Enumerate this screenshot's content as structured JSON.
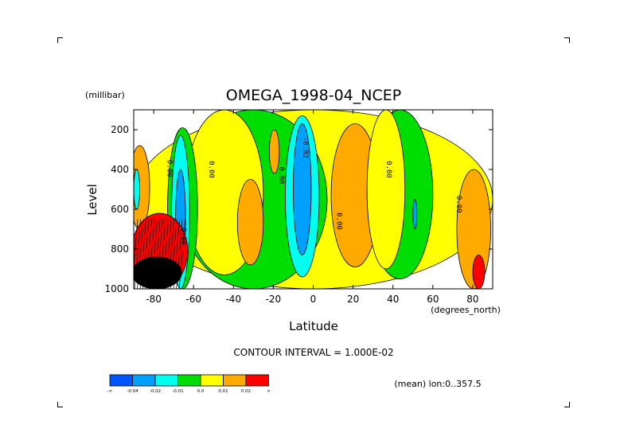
{
  "chart_data": {
    "type": "heatmap",
    "title": "OMEGA_1998-04_NCEP",
    "xlabel": "Latitude",
    "x_unit": "(degrees_north)",
    "ylabel": "Level",
    "y_unit": "(millibar)",
    "xlim": [
      -90,
      90
    ],
    "ylim": [
      1000,
      100
    ],
    "x_ticks": [
      -80,
      -60,
      -40,
      -20,
      0,
      20,
      40,
      60,
      80
    ],
    "y_ticks": [
      200,
      400,
      600,
      800,
      1000
    ],
    "contour_interval_text": "CONTOUR INTERVAL = 1.000E-02",
    "mean_text": "(mean) lon:0..357.5",
    "contour_labels": [
      {
        "text": "0.00",
        "lat": -73,
        "lev": 395
      },
      {
        "text": "0.00",
        "lat": -52,
        "lev": 400
      },
      {
        "text": "0.00",
        "lat": -17,
        "lev": 430
      },
      {
        "text": "-0.02",
        "lat": -5,
        "lev": 290
      },
      {
        "text": "0.00",
        "lat": 12,
        "lev": 660
      },
      {
        "text": "0.00",
        "lat": 37,
        "lev": 400
      },
      {
        "text": "0.00",
        "lat": 72,
        "lev": 575
      },
      {
        "text": "0.00",
        "lat": -66,
        "lev": 735
      }
    ],
    "colorbar": {
      "colors": [
        "#0055ff",
        "#00a0ff",
        "#00ffee",
        "#00dd00",
        "#ffff00",
        "#ffaa00",
        "#ff0000"
      ],
      "labels": [
        "-∞",
        "-0.04",
        "-0.02",
        "-0.01",
        "0.0",
        "0.01",
        "0.02",
        "∞"
      ]
    },
    "regions": [
      {
        "level": "positive-low",
        "lat": [
          -90,
          90
        ],
        "lev": [
          100,
          1000
        ]
      },
      {
        "level": "negative-low",
        "lat": [
          -67,
          7
        ],
        "lev": [
          100,
          1000
        ]
      },
      {
        "level": "positive-low",
        "lat": [
          -64,
          -25
        ],
        "lev": [
          100,
          930
        ]
      },
      {
        "level": "positive-mid",
        "lat": [
          -38,
          -25
        ],
        "lev": [
          450,
          880
        ]
      },
      {
        "level": "positive-mid",
        "lat": [
          -22,
          -17
        ],
        "lev": [
          200,
          420
        ]
      },
      {
        "level": "negative-mid",
        "lat": [
          -14,
          3
        ],
        "lev": [
          130,
          940
        ]
      },
      {
        "level": "negative-high",
        "lat": [
          -10,
          -1
        ],
        "lev": [
          170,
          830
        ]
      },
      {
        "level": "positive-mid",
        "lat": [
          9,
          33
        ],
        "lev": [
          170,
          890
        ]
      },
      {
        "level": "negative-low",
        "lat": [
          27,
          60
        ],
        "lev": [
          100,
          950
        ]
      },
      {
        "level": "positive-low",
        "lat": [
          27,
          46
        ],
        "lev": [
          100,
          900
        ]
      },
      {
        "level": "negative-high",
        "lat": [
          50,
          52
        ],
        "lev": [
          550,
          700
        ]
      },
      {
        "level": "positive-mid",
        "lat": [
          -92,
          -82
        ],
        "lev": [
          280,
          700
        ]
      },
      {
        "level": "negative-mid",
        "lat": [
          -90,
          -87
        ],
        "lev": [
          400,
          600
        ]
      },
      {
        "level": "positive-mid",
        "lat": [
          72,
          89
        ],
        "lev": [
          400,
          1000
        ]
      },
      {
        "level": "positive-high",
        "lat": [
          80,
          86
        ],
        "lev": [
          830,
          1000
        ]
      },
      {
        "level": "negative-low",
        "lat": [
          -73,
          -58
        ],
        "lev": [
          190,
          1000
        ]
      },
      {
        "level": "negative-mid",
        "lat": [
          -71,
          -62
        ],
        "lev": [
          230,
          1000
        ]
      },
      {
        "level": "negative-high",
        "lat": [
          -69,
          -64
        ],
        "lev": [
          400,
          900
        ]
      },
      {
        "level": "positive-high",
        "lat": [
          -91,
          -63
        ],
        "lev": [
          620,
          1000
        ]
      },
      {
        "level": "extreme",
        "lat": [
          -91,
          -66
        ],
        "lev": [
          840,
          1000
        ]
      }
    ]
  }
}
